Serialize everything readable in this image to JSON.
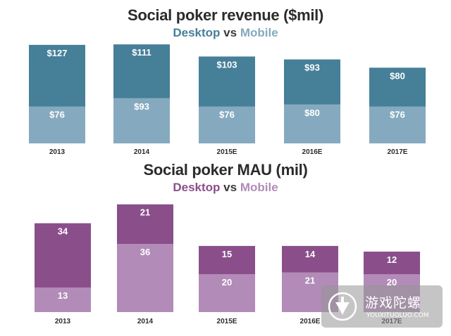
{
  "colors": {
    "rev_desktop": "#467f98",
    "rev_mobile": "#85aabf",
    "mau_desktop": "#8a4f8a",
    "mau_mobile": "#b28bb8",
    "label": "#ffffff",
    "axis_text": "#2b2b2b"
  },
  "chart_data": [
    {
      "type": "bar",
      "stacked": true,
      "title": "Social poker revenue ($mil)",
      "subtitle_parts": [
        "Desktop",
        "vs",
        "Mobile"
      ],
      "categories": [
        "2013",
        "2014",
        "2015E",
        "2016E",
        "2017E"
      ],
      "series": [
        {
          "name": "Mobile",
          "values": [
            76,
            93,
            76,
            80,
            76
          ],
          "labels": [
            "$76",
            "$93",
            "$76",
            "$80",
            "$76"
          ]
        },
        {
          "name": "Desktop",
          "values": [
            127,
            111,
            103,
            93,
            80
          ],
          "labels": [
            "$127",
            "$111",
            "$103",
            "$93",
            "$80"
          ]
        }
      ],
      "ylim": [
        0,
        210
      ],
      "xlabel": "",
      "ylabel": "",
      "grid": false
    },
    {
      "type": "bar",
      "stacked": true,
      "title": "Social poker MAU (mil)",
      "subtitle_parts": [
        "Desktop",
        "vs",
        "Mobile"
      ],
      "categories": [
        "2013",
        "2014",
        "2015E",
        "2016E",
        "2017E"
      ],
      "series": [
        {
          "name": "Mobile",
          "values": [
            13,
            36,
            20,
            21,
            20
          ],
          "labels": [
            "13",
            "36",
            "20",
            "21",
            "20"
          ]
        },
        {
          "name": "Desktop",
          "values": [
            34,
            21,
            15,
            14,
            12
          ],
          "labels": [
            "34",
            "21",
            "15",
            "14",
            "12"
          ]
        }
      ],
      "ylim": [
        0,
        58
      ],
      "xlabel": "",
      "ylabel": "",
      "grid": false
    }
  ],
  "watermark": {
    "name_cn": "游戏陀螺",
    "domain": "YOUXITUOLUO.COM",
    "logo_icon": "spinning-top-icon"
  }
}
